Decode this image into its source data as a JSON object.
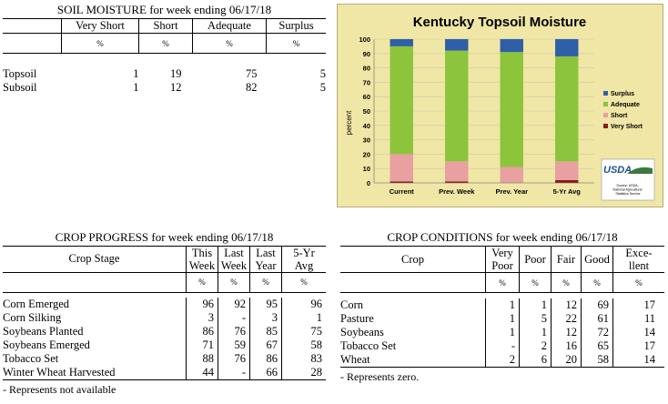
{
  "soil_moisture": {
    "title": "SOIL MOISTURE for week ending 06/17/18",
    "headers": [
      "Very Short",
      "Short",
      "Adequate",
      "Surplus"
    ],
    "unit": "%",
    "rows": [
      {
        "label": "Topsoil",
        "values": [
          "1",
          "19",
          "75",
          "5"
        ]
      },
      {
        "label": "Subsoil",
        "values": [
          "1",
          "12",
          "82",
          "5"
        ]
      }
    ]
  },
  "chart_data": {
    "type": "bar",
    "stacked": true,
    "title": "Kentucky Topsoil Moisture",
    "ylabel": "percent",
    "ylim": [
      0,
      100
    ],
    "yticks": [
      0,
      10,
      20,
      30,
      40,
      50,
      60,
      70,
      80,
      90,
      100
    ],
    "categories": [
      "Current",
      "Prev. Week",
      "Prev. Year",
      "5-Yr Avg"
    ],
    "series": [
      {
        "name": "Very Short",
        "color": "#8b1a1a",
        "values": [
          1,
          1,
          0,
          2
        ]
      },
      {
        "name": "Short",
        "color": "#e8a0a0",
        "values": [
          19,
          14,
          11,
          13
        ]
      },
      {
        "name": "Adequate",
        "color": "#8cc43c",
        "values": [
          75,
          77,
          80,
          73
        ]
      },
      {
        "name": "Surplus",
        "color": "#2e5fa8",
        "values": [
          5,
          8,
          9,
          12
        ]
      }
    ],
    "legend_order": [
      "Surplus",
      "Adequate",
      "Short",
      "Very Short"
    ],
    "legend_position": "right",
    "logo": "USDA",
    "source": "Source: USDA, National Agricultural Statistics Service"
  },
  "crop_progress": {
    "title": "CROP PROGRESS for week ending 06/17/18",
    "stage_header": "Crop Stage",
    "headers": [
      [
        "This",
        "Week"
      ],
      [
        "Last",
        "Week"
      ],
      [
        "Last",
        "Year"
      ],
      [
        "5-Yr",
        "Avg"
      ]
    ],
    "unit": "%",
    "rows": [
      {
        "label": "Corn Emerged",
        "values": [
          "96",
          "92",
          "95",
          "96"
        ]
      },
      {
        "label": "Corn Silking",
        "values": [
          "3",
          "-",
          "3",
          "1"
        ]
      },
      {
        "label": "Soybeans Planted",
        "values": [
          "86",
          "76",
          "85",
          "75"
        ]
      },
      {
        "label": "Soybeans Emerged",
        "values": [
          "71",
          "59",
          "67",
          "58"
        ]
      },
      {
        "label": "Tobacco Set",
        "values": [
          "88",
          "76",
          "86",
          "83"
        ]
      },
      {
        "label": "Winter Wheat Harvested",
        "values": [
          "44",
          "-",
          "66",
          "28"
        ]
      }
    ],
    "footnote": "- Represents not available"
  },
  "crop_conditions": {
    "title": "CROP CONDITIONS for week ending 06/17/18",
    "crop_header": "Crop",
    "headers": [
      [
        "Very",
        "Poor"
      ],
      [
        "Poor"
      ],
      [
        "Fair"
      ],
      [
        "Good"
      ],
      [
        "Exce-",
        "llent"
      ]
    ],
    "unit": "%",
    "rows": [
      {
        "label": "Corn",
        "values": [
          "1",
          "1",
          "12",
          "69",
          "17"
        ]
      },
      {
        "label": "Pasture",
        "values": [
          "1",
          "5",
          "22",
          "61",
          "11"
        ]
      },
      {
        "label": "Soybeans",
        "values": [
          "1",
          "1",
          "12",
          "72",
          "14"
        ]
      },
      {
        "label": "Tobacco Set",
        "values": [
          "-",
          "2",
          "16",
          "65",
          "17"
        ]
      },
      {
        "label": "Wheat",
        "values": [
          "2",
          "6",
          "20",
          "58",
          "14"
        ]
      }
    ],
    "footnote": "- Represents zero."
  }
}
